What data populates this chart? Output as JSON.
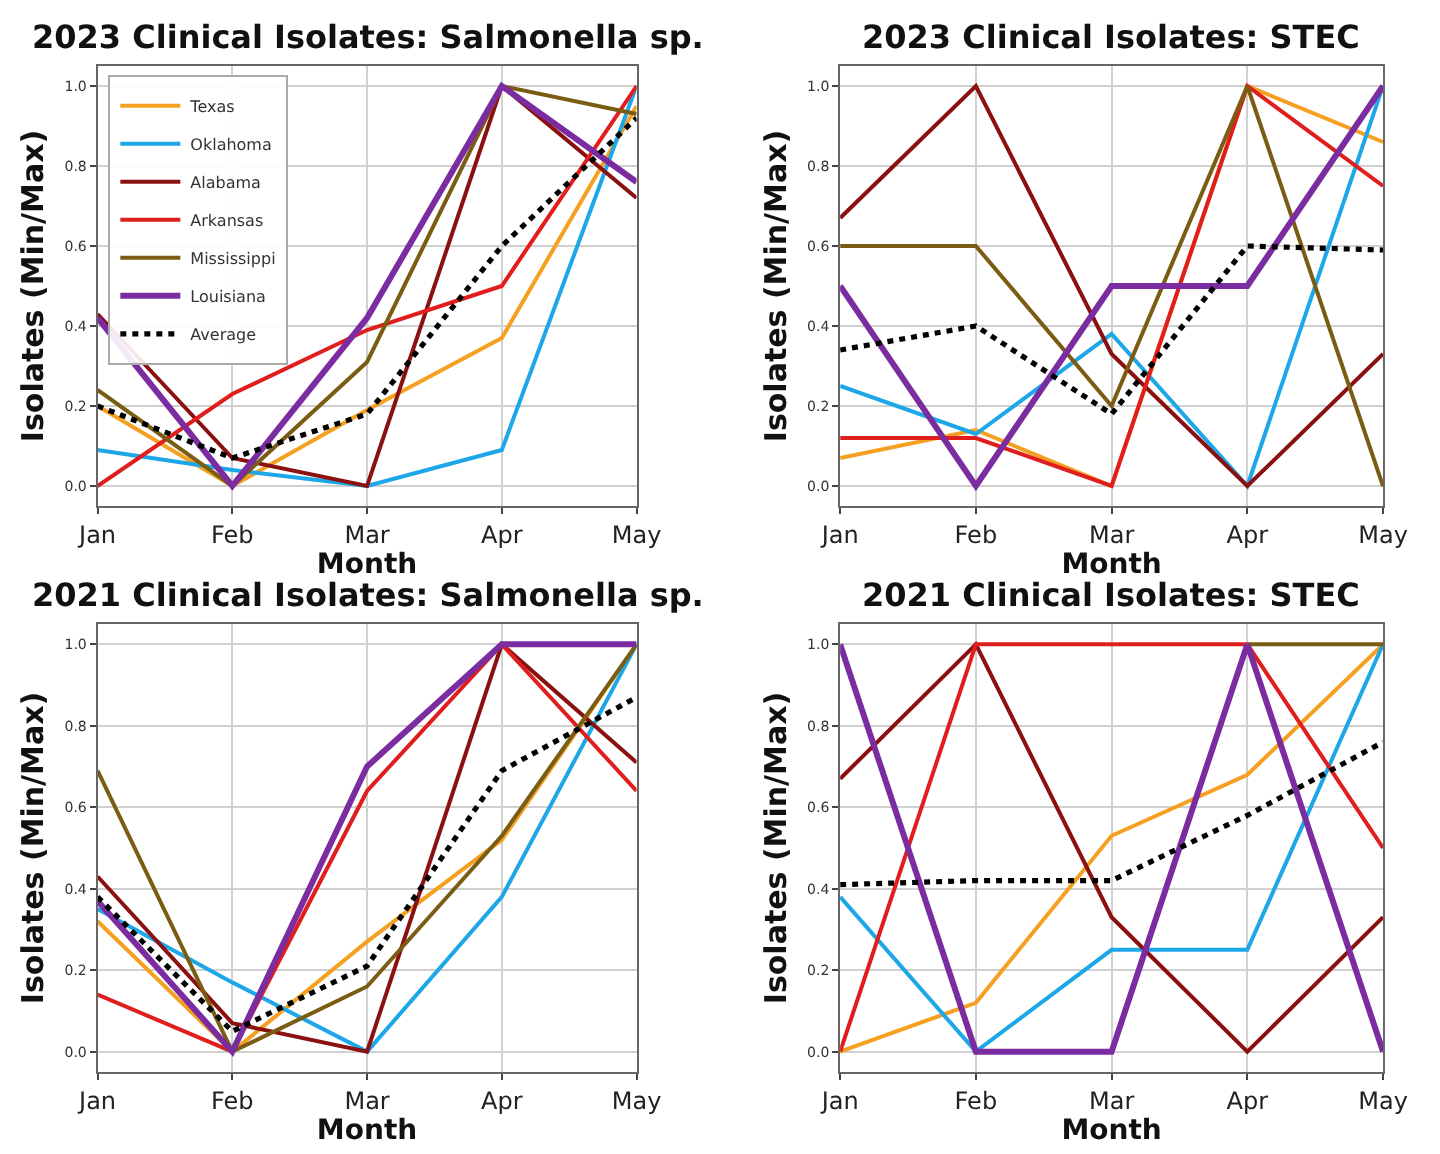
{
  "chart_data": [
    {
      "type": "line",
      "title": "2023 Clinical Isolates: Salmonella sp.",
      "xlabel": "Month",
      "ylabel": "Isolates (Min/Max)",
      "categories": [
        "Jan",
        "Feb",
        "Mar",
        "Apr",
        "May"
      ],
      "ylim": [
        -0.05,
        1.05
      ],
      "yticks": [
        {
          "value": 0,
          "label": "0.0"
        },
        {
          "value": 0.2,
          "label": "0.2"
        },
        {
          "value": 0.4,
          "label": "0.4"
        },
        {
          "value": 0.6,
          "label": "0.6"
        },
        {
          "value": 0.8,
          "label": "0.8"
        },
        {
          "value": 1,
          "label": "1.0"
        }
      ],
      "grid": true,
      "legend": "top left",
      "marker": "none",
      "series": [
        {
          "name": "Texas",
          "color": "#f5a020",
          "values": [
            0.2,
            0.0,
            0.19,
            0.37,
            0.95
          ]
        },
        {
          "name": "Oklahoma",
          "color": "#1ea7e8",
          "values": [
            0.09,
            0.04,
            0.0,
            0.09,
            1.0
          ]
        },
        {
          "name": "Alabama",
          "color": "#8b1010",
          "values": [
            0.43,
            0.07,
            0.0,
            1.0,
            0.72
          ]
        },
        {
          "name": "Arkansas",
          "color": "#e01e1e",
          "values": [
            0.0,
            0.23,
            0.39,
            0.5,
            1.0
          ]
        },
        {
          "name": "Mississippi",
          "color": "#7a5c12",
          "values": [
            0.24,
            0.0,
            0.31,
            1.0,
            0.93
          ]
        },
        {
          "name": "Louisiana",
          "color": "#7b2ca0",
          "values": [
            0.42,
            0.0,
            0.42,
            1.0,
            0.76
          ]
        },
        {
          "name": "Average",
          "color": "#000000",
          "line_style": "dotted",
          "values": [
            0.2,
            0.07,
            0.18,
            0.6,
            0.92
          ]
        }
      ]
    },
    {
      "type": "line",
      "title": "2023 Clinical Isolates: STEC",
      "xlabel": "Month",
      "ylabel": "Isolates (Min/Max)",
      "categories": [
        "Jan",
        "Feb",
        "Mar",
        "Apr",
        "May"
      ],
      "ylim": [
        -0.05,
        1.05
      ],
      "yticks": [
        {
          "value": 0,
          "label": "0.0"
        },
        {
          "value": 0.2,
          "label": "0.2"
        },
        {
          "value": 0.4,
          "label": "0.4"
        },
        {
          "value": 0.6,
          "label": "0.6"
        },
        {
          "value": 0.8,
          "label": "0.8"
        },
        {
          "value": 1,
          "label": "1.0"
        }
      ],
      "grid": true,
      "marker": "none",
      "series": [
        {
          "color": "#f5a020",
          "values": [
            0.07,
            0.14,
            0.0,
            1.0,
            0.86
          ]
        },
        {
          "color": "#1ea7e8",
          "values": [
            0.25,
            0.13,
            0.38,
            0.0,
            1.0
          ]
        },
        {
          "color": "#8b1010",
          "values": [
            0.67,
            1.0,
            0.33,
            0.0,
            0.33
          ]
        },
        {
          "color": "#e01e1e",
          "values": [
            0.12,
            0.12,
            0.0,
            1.0,
            0.75
          ]
        },
        {
          "color": "#7a5c12",
          "values": [
            0.6,
            0.6,
            0.2,
            1.0,
            0.0
          ]
        },
        {
          "color": "#7b2ca0",
          "values": [
            0.5,
            0.0,
            0.5,
            0.5,
            1.0
          ]
        },
        {
          "color": "#000000",
          "line_style": "dotted",
          "values": [
            0.34,
            0.4,
            0.18,
            0.6,
            0.59
          ]
        }
      ]
    },
    {
      "type": "line",
      "title": "2021 Clinical Isolates: Salmonella sp.",
      "xlabel": "Month",
      "ylabel": "Isolates (Min/Max)",
      "categories": [
        "Jan",
        "Feb",
        "Mar",
        "Apr",
        "May"
      ],
      "ylim": [
        -0.05,
        1.05
      ],
      "yticks": [
        {
          "value": 0,
          "label": "0.0"
        },
        {
          "value": 0.2,
          "label": "0.2"
        },
        {
          "value": 0.4,
          "label": "0.4"
        },
        {
          "value": 0.6,
          "label": "0.6"
        },
        {
          "value": 0.8,
          "label": "0.8"
        },
        {
          "value": 1,
          "label": "1.0"
        }
      ],
      "grid": true,
      "marker": "none",
      "series": [
        {
          "color": "#f5a020",
          "values": [
            0.32,
            0.0,
            0.27,
            0.52,
            1.0
          ]
        },
        {
          "color": "#1ea7e8",
          "values": [
            0.35,
            0.17,
            0.0,
            0.38,
            1.0
          ]
        },
        {
          "color": "#8b1010",
          "values": [
            0.43,
            0.07,
            0.0,
            1.0,
            0.71
          ]
        },
        {
          "color": "#e01e1e",
          "values": [
            0.14,
            0.0,
            0.64,
            1.0,
            0.64
          ]
        },
        {
          "color": "#7a5c12",
          "values": [
            0.69,
            0.0,
            0.16,
            0.53,
            1.0
          ]
        },
        {
          "color": "#7b2ca0",
          "values": [
            0.37,
            0.0,
            0.7,
            1.0,
            1.0
          ]
        },
        {
          "color": "#000000",
          "line_style": "dotted",
          "values": [
            0.38,
            0.05,
            0.21,
            0.69,
            0.87
          ]
        }
      ]
    },
    {
      "type": "line",
      "title": "2021 Clinical Isolates: STEC",
      "xlabel": "Month",
      "ylabel": "Isolates (Min/Max)",
      "categories": [
        "Jan",
        "Feb",
        "Mar",
        "Apr",
        "May"
      ],
      "ylim": [
        -0.05,
        1.05
      ],
      "yticks": [
        {
          "value": 0,
          "label": "0.0"
        },
        {
          "value": 0.2,
          "label": "0.2"
        },
        {
          "value": 0.4,
          "label": "0.4"
        },
        {
          "value": 0.6,
          "label": "0.6"
        },
        {
          "value": 0.8,
          "label": "0.8"
        },
        {
          "value": 1,
          "label": "1.0"
        }
      ],
      "grid": true,
      "marker": "none",
      "series": [
        {
          "color": "#f5a020",
          "values": [
            0.0,
            0.12,
            0.53,
            0.68,
            1.0
          ]
        },
        {
          "color": "#1ea7e8",
          "values": [
            0.38,
            0.0,
            0.25,
            0.25,
            1.0
          ]
        },
        {
          "color": "#8b1010",
          "values": [
            0.67,
            1.0,
            0.33,
            0.0,
            0.33
          ]
        },
        {
          "color": "#e01e1e",
          "values": [
            0.0,
            1.0,
            1.0,
            1.0,
            0.5
          ]
        },
        {
          "color": "#7a5c12",
          "values": [
            null,
            null,
            null,
            1.0,
            1.0
          ]
        },
        {
          "color": "#7b2ca0",
          "values": [
            1.0,
            0.0,
            0.0,
            1.0,
            0.0
          ]
        },
        {
          "color": "#000000",
          "line_style": "dotted",
          "values": [
            0.41,
            0.42,
            0.42,
            0.58,
            0.76
          ]
        }
      ]
    }
  ]
}
